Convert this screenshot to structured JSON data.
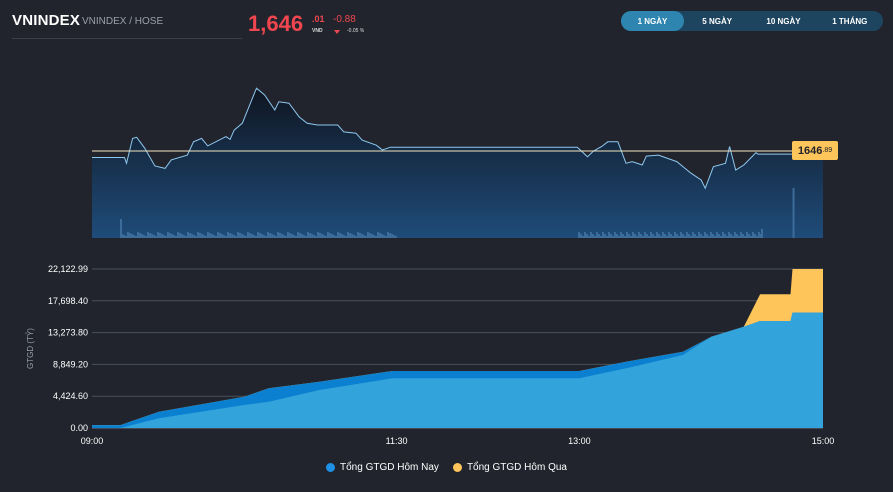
{
  "header": {
    "symbol": "VNINDEX",
    "exchange": "VNINDEX / HOSE",
    "price_int": "1,646",
    "price_dec": ".01",
    "unit": "VND",
    "change": "-0.88",
    "change_pct": "-0.05 %",
    "change_direction_icon": "triangle-down-icon"
  },
  "tabs": [
    {
      "label": "1 NGÀY",
      "active": true
    },
    {
      "label": "5 NGÀY",
      "active": false
    },
    {
      "label": "10 NGÀY",
      "active": false
    },
    {
      "label": "1 THÁNG",
      "active": false
    }
  ],
  "colors": {
    "background": "#21242c",
    "down": "#f0464f",
    "reference": "#fdc55a",
    "price_line": "#8ec8f0",
    "today": "#33a3dc",
    "today_legend": "#1e90e6",
    "yesterday_band": "#0b80d0",
    "yesterday": "#fdc55a"
  },
  "chart_data": [
    {
      "type": "line",
      "reference_value": 1646.89,
      "reference_label_int": "1646",
      "reference_label_dec": ".89",
      "ylim": [
        1621.4,
        1667.7
      ],
      "x_range": [
        "09:00",
        "15:00"
      ],
      "series": [
        {
          "x": [
            "09:00",
            "09:16",
            "09:17",
            "09:20",
            "09:22",
            "09:26",
            "09:31",
            "09:36",
            "09:39",
            "09:47",
            "09:50",
            "09:54",
            "09:57",
            "10:06",
            "10:08",
            "10:10",
            "10:14",
            "10:18",
            "10:21",
            "10:25",
            "10:30",
            "10:32",
            "10:37",
            "10:42",
            "10:46",
            "10:51",
            "11:01",
            "11:04",
            "11:10",
            "11:13",
            "11:20",
            "11:23",
            "11:27",
            "12:59",
            "13:04",
            "13:07",
            "13:11",
            "13:14",
            "13:19",
            "13:23",
            "13:26",
            "13:31",
            "13:33",
            "13:39",
            "13:48",
            "13:55",
            "14:00",
            "14:02",
            "14:06",
            "14:12",
            "14:14",
            "14:17",
            "14:21",
            "14:27",
            "14:28",
            "14:45"
          ],
          "y": [
            1645.0,
            1645.0,
            1643.3,
            1650.6,
            1650.9,
            1647.7,
            1642.5,
            1641.8,
            1644.3,
            1645.7,
            1649.6,
            1650.6,
            1648.4,
            1651.1,
            1650.3,
            1653.0,
            1655.0,
            1660.9,
            1665.3,
            1663.3,
            1658.9,
            1661.3,
            1660.9,
            1656.9,
            1655.0,
            1654.5,
            1654.5,
            1652.5,
            1652.1,
            1650.1,
            1648.6,
            1647.2,
            1648.0,
            1648.0,
            1645.2,
            1646.9,
            1648.2,
            1649.6,
            1649.6,
            1643.3,
            1643.8,
            1642.8,
            1645.4,
            1645.7,
            1643.8,
            1640.4,
            1638.4,
            1636.0,
            1642.3,
            1643.3,
            1648.2,
            1641.3,
            1642.8,
            1646.4,
            1646.0,
            1646.0
          ]
        }
      ]
    },
    {
      "type": "area",
      "ylabel": "GTGD (TỶ)",
      "ylim": [
        0,
        22122.99
      ],
      "yticks": [
        "0.00",
        "4,424.60",
        "8,849.20",
        "13,273.80",
        "17,698.40",
        "22,122.99"
      ],
      "ytick_values": [
        0,
        4424.6,
        8849.2,
        13273.8,
        17698.4,
        22122.99
      ],
      "xticks": [
        "09:00",
        "11:30",
        "13:00",
        "15:00"
      ],
      "grid": true,
      "legend_placement": "bottom",
      "series": [
        {
          "name": "Tổng GTGD Hôm Nay",
          "x": [
            "09:00",
            "09:14",
            "09:33",
            "10:15",
            "10:27",
            "10:52",
            "11:28",
            "13:00",
            "13:23",
            "13:51",
            "14:05",
            "14:21",
            "14:29",
            "14:44",
            "14:45",
            "15:00"
          ],
          "y": [
            0,
            0,
            1350,
            3200,
            3660,
            5290,
            6910,
            6910,
            8300,
            10160,
            12700,
            14100,
            14890,
            14890,
            16050,
            16050
          ]
        },
        {
          "name": "Tổng GTGD Hôm Qua",
          "x": [
            "09:00",
            "09:14",
            "09:33",
            "10:15",
            "10:27",
            "10:52",
            "11:28",
            "13:00",
            "13:23",
            "13:51",
            "14:05",
            "14:21",
            "14:29",
            "14:44",
            "14:45",
            "15:00"
          ],
          "y": [
            400,
            400,
            2270,
            4360,
            5520,
            6440,
            7930,
            7930,
            9230,
            10620,
            12700,
            14100,
            18600,
            18600,
            22122.99,
            22122.99
          ]
        }
      ]
    }
  ]
}
